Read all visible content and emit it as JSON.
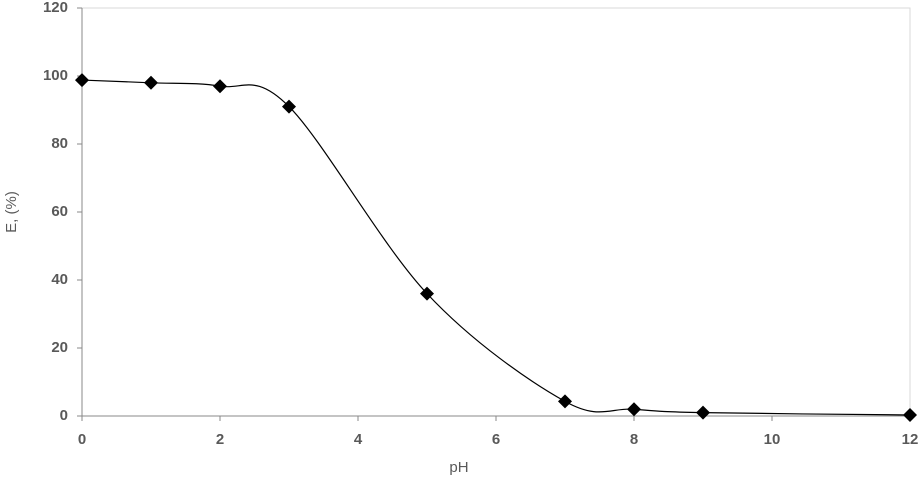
{
  "chart_data": {
    "type": "scatter",
    "x_label": "pH",
    "y_label": "E, (%)",
    "x": [
      0,
      1,
      2,
      3,
      5,
      7,
      8,
      9,
      12
    ],
    "series": [
      {
        "name": "E",
        "color": "#000000",
        "values": [
          98.8,
          98,
          97,
          91,
          36,
          4.3,
          2,
          1,
          0.3
        ]
      }
    ],
    "smooth": true,
    "xlim": [
      0,
      12
    ],
    "xticks": [
      0,
      2,
      4,
      6,
      8,
      10,
      12
    ],
    "ylim": [
      0,
      120
    ],
    "yticks": [
      0,
      20,
      40,
      60,
      80,
      100,
      120
    ],
    "grid": false
  }
}
